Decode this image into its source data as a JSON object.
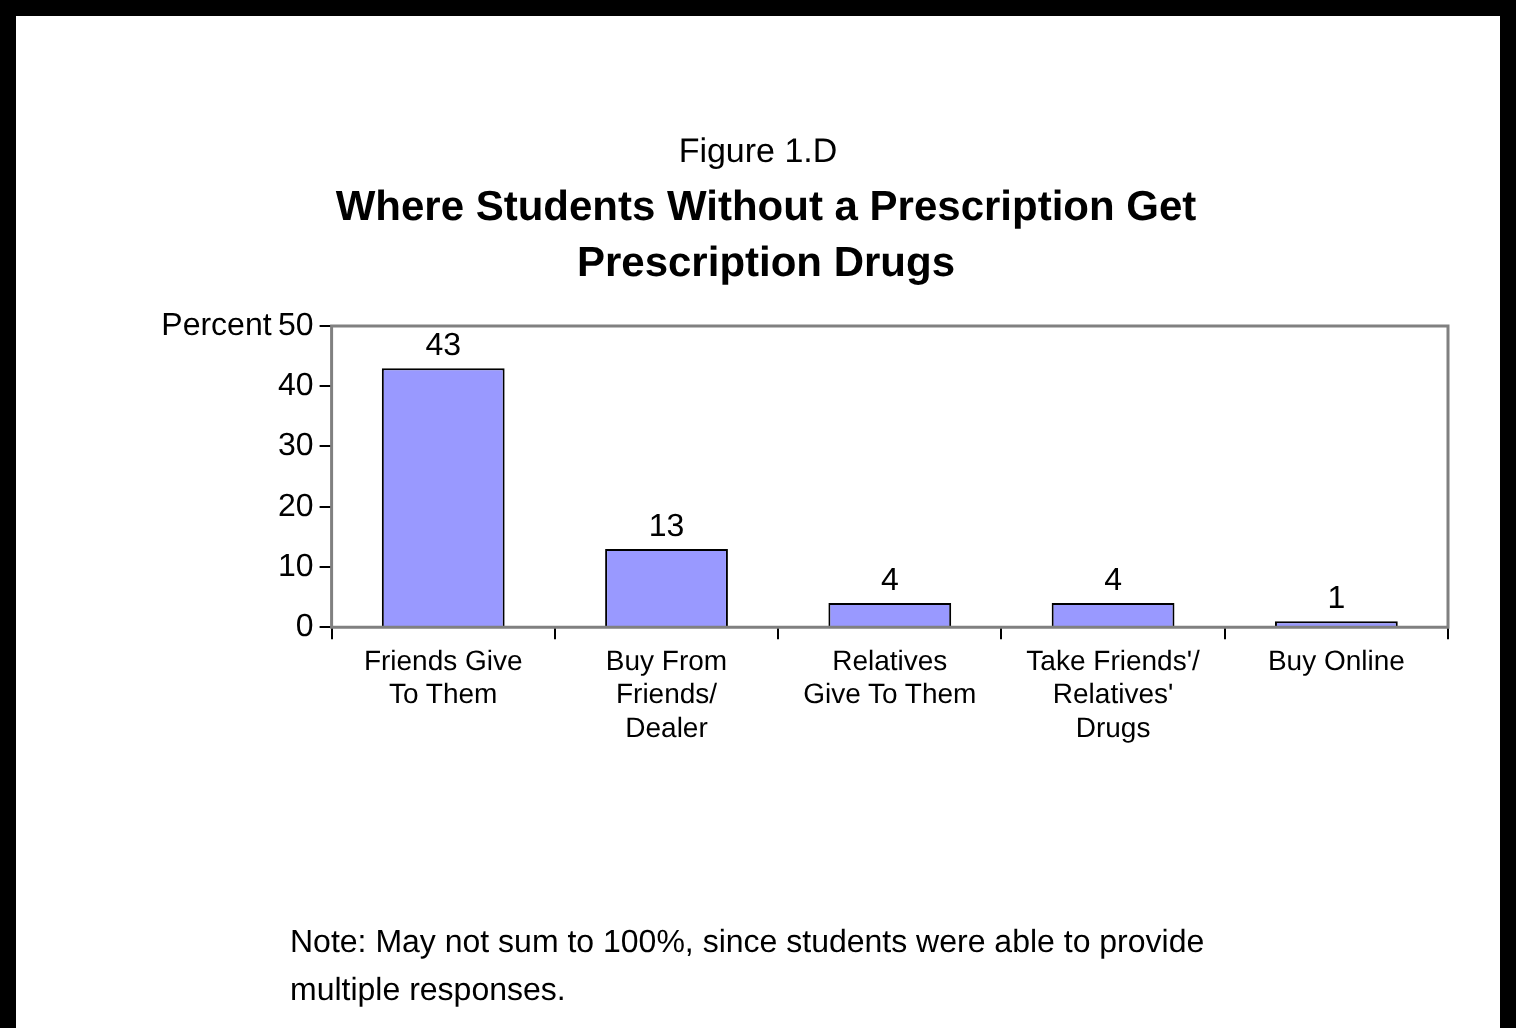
{
  "chart_data": {
    "type": "bar",
    "subtitle": "Figure 1.D",
    "title": "Where Students Without a Prescription Get Prescription Drugs",
    "ylabel": "Percent",
    "categories": [
      "Friends Give To Them",
      "Buy From Friends/ Dealer",
      "Relatives Give To Them",
      "Take Friends'/ Relatives' Drugs",
      "Buy Online"
    ],
    "values": [
      43,
      13,
      4,
      4,
      1
    ],
    "color": "#9999ff",
    "ylim": [
      0,
      50
    ],
    "yticks": [
      0,
      10,
      20,
      30,
      40,
      50
    ],
    "grid": false,
    "legend": false,
    "data_labels": true,
    "annotations": [
      "Note: May not sum to 100%, since students were able to provide multiple responses."
    ]
  }
}
